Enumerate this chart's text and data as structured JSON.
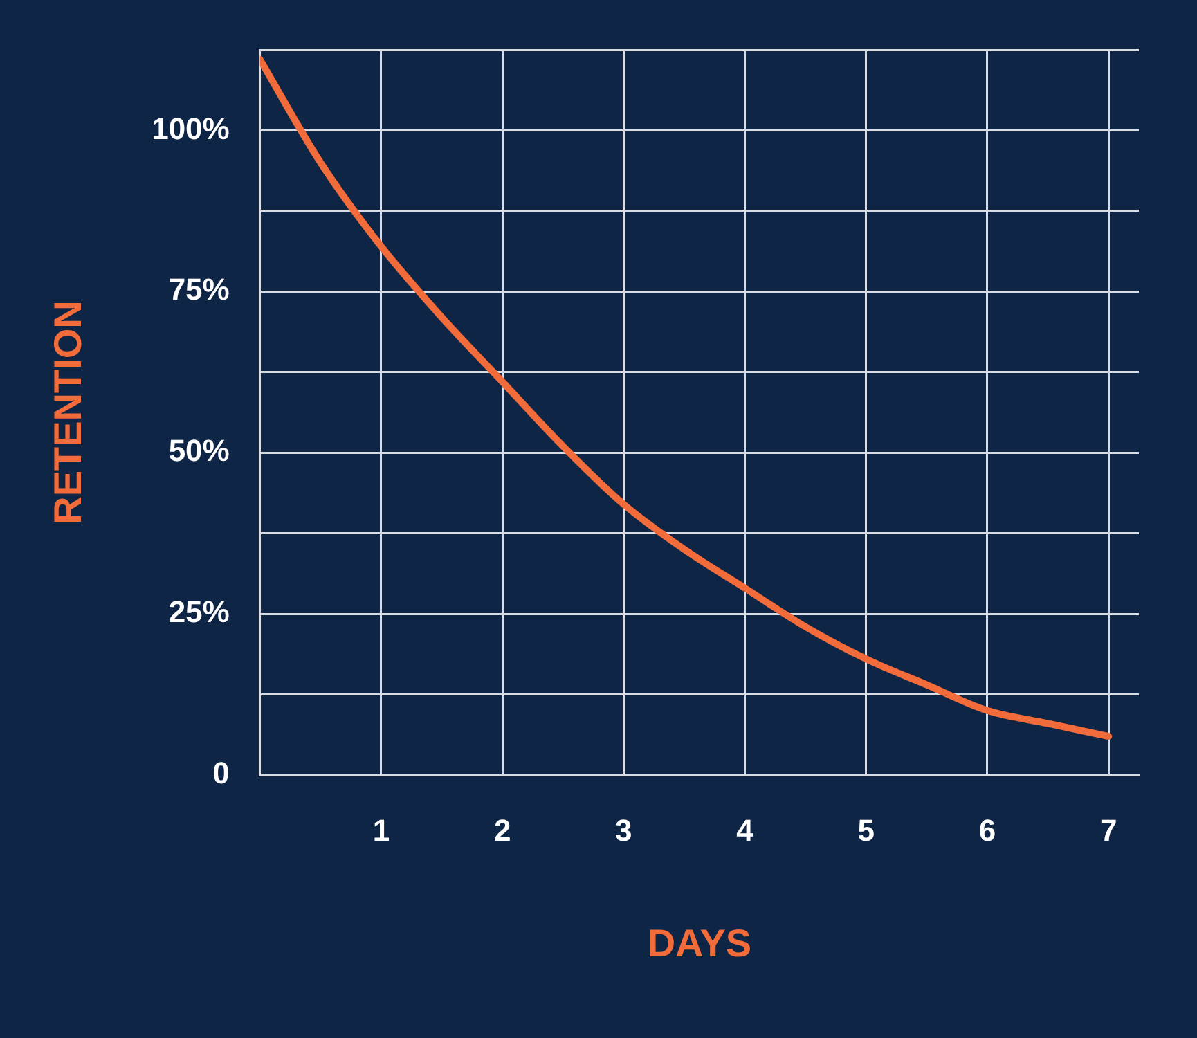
{
  "chart_data": {
    "type": "line",
    "xlabel": "DAYS",
    "ylabel": "RETENTION",
    "x": [
      0,
      0.5,
      1,
      1.5,
      2,
      2.5,
      3,
      3.5,
      4,
      4.5,
      5,
      5.5,
      6,
      6.5,
      7
    ],
    "series": [
      {
        "color": "#f26b3a",
        "values": [
          111,
          95,
          82,
          71,
          61,
          51,
          42,
          35,
          29,
          23,
          18,
          14,
          10,
          8,
          6
        ]
      }
    ],
    "xlim": [
      0,
      7.25
    ],
    "xticks": [
      {
        "value": 0,
        "label": null
      },
      1,
      2,
      3,
      4,
      5,
      6,
      7
    ],
    "ylim": [
      0,
      112.5
    ],
    "yticks": [
      {
        "value": 0,
        "label": "0"
      },
      {
        "value": 12.5,
        "label": null
      },
      {
        "value": 25,
        "label": "25%"
      },
      {
        "value": 37.5,
        "label": null
      },
      {
        "value": 50,
        "label": "50%"
      },
      {
        "value": 62.5,
        "label": null
      },
      {
        "value": 75,
        "label": "75%"
      },
      {
        "value": 87.5,
        "label": null
      },
      {
        "value": 100,
        "label": "100%"
      },
      {
        "value": 112.5,
        "label": null
      }
    ],
    "grid": true,
    "legend": false,
    "marker": "none",
    "line_style": "solid"
  }
}
